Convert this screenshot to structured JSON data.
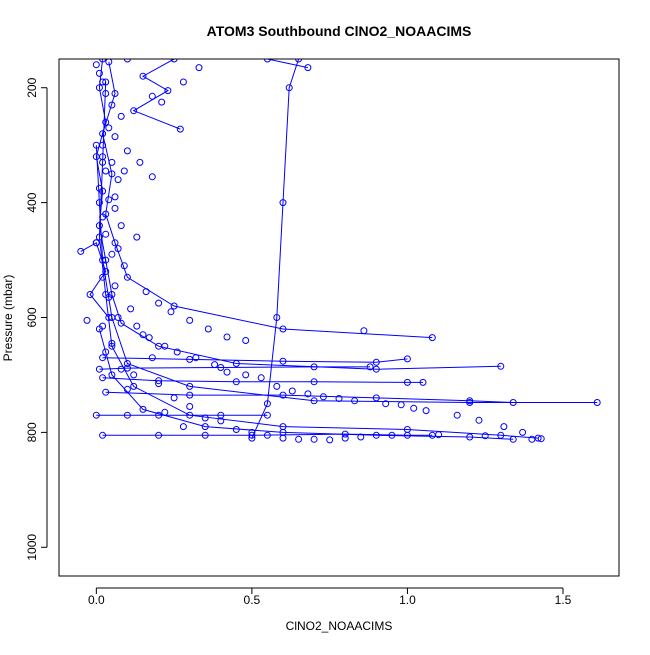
{
  "chart_data": {
    "type": "scatter",
    "title": "ATOM3 Southbound ClNO2_NOAACIMS",
    "xlabel": "ClNO2_NOAACIMS",
    "ylabel": "Pressure (mbar)",
    "xlim": [
      -0.12,
      1.68
    ],
    "ylim": [
      1050,
      150
    ],
    "y_reversed": true,
    "x_ticks": [
      "0.0",
      "0.5",
      "1.0",
      "1.5"
    ],
    "y_ticks": [
      "200",
      "400",
      "600",
      "800",
      "1000"
    ],
    "grid": false,
    "legend": "none",
    "marker": "open-circle",
    "color": "#0000ff",
    "series": [
      {
        "values": [
          [
            0.02,
            150
          ],
          [
            0.01,
            200
          ],
          [
            0.03,
            260
          ],
          [
            0.0,
            320
          ],
          [
            0.02,
            380
          ],
          [
            0.01,
            440
          ],
          [
            0.03,
            500
          ],
          [
            0.05,
            560
          ],
          [
            0.08,
            610
          ],
          [
            0.2,
            650
          ],
          [
            0.45,
            680
          ],
          [
            0.9,
            690
          ],
          [
            1.3,
            685
          ]
        ]
      },
      {
        "values": [
          [
            0.04,
            155
          ],
          [
            0.06,
            210
          ],
          [
            0.02,
            280
          ],
          [
            0.05,
            350
          ],
          [
            0.03,
            420
          ],
          [
            0.06,
            470
          ],
          [
            0.1,
            530
          ],
          [
            0.25,
            580
          ],
          [
            0.6,
            620
          ],
          [
            1.08,
            635
          ]
        ]
      },
      {
        "values": [
          [
            0.0,
            300
          ],
          [
            0.01,
            400
          ],
          [
            0.02,
            500
          ],
          [
            0.05,
            600
          ],
          [
            0.1,
            680
          ],
          [
            0.3,
            720
          ],
          [
            0.7,
            745
          ],
          [
            1.2,
            748
          ],
          [
            1.61,
            748
          ]
        ]
      },
      {
        "values": [
          [
            0.03,
            190
          ],
          [
            0.02,
            330
          ],
          [
            0.01,
            460
          ],
          [
            0.03,
            560
          ],
          [
            0.05,
            650
          ],
          [
            0.12,
            720
          ],
          [
            0.3,
            770
          ],
          [
            0.6,
            790
          ],
          [
            1.0,
            795
          ],
          [
            1.3,
            805
          ],
          [
            1.42,
            810
          ]
        ]
      },
      {
        "values": [
          [
            0.01,
            620
          ],
          [
            0.05,
            700
          ],
          [
            0.15,
            760
          ],
          [
            0.35,
            790
          ],
          [
            0.6,
            800
          ],
          [
            0.9,
            805
          ],
          [
            1.2,
            808
          ],
          [
            1.34,
            812
          ]
        ]
      },
      {
        "values": [
          [
            0.5,
            810
          ],
          [
            0.55,
            750
          ],
          [
            0.58,
            600
          ],
          [
            0.6,
            400
          ],
          [
            0.62,
            200
          ],
          [
            0.65,
            150
          ]
        ]
      },
      {
        "values": [
          [
            0.68,
            165
          ],
          [
            0.55,
            150
          ]
        ]
      },
      {
        "values": [
          [
            0.1,
            150
          ],
          [
            0.25,
            150
          ],
          [
            0.15,
            180
          ],
          [
            0.23,
            205
          ],
          [
            0.12,
            240
          ],
          [
            0.27,
            272
          ]
        ]
      },
      {
        "values": [
          [
            0.02,
            705
          ],
          [
            0.2,
            710
          ],
          [
            0.45,
            712
          ],
          [
            0.7,
            712
          ],
          [
            1.0,
            713
          ],
          [
            1.05,
            713
          ]
        ]
      },
      {
        "values": [
          [
            0.03,
            730
          ],
          [
            0.3,
            735
          ],
          [
            0.6,
            735
          ],
          [
            0.9,
            740
          ],
          [
            1.2,
            745
          ],
          [
            1.34,
            748
          ]
        ]
      },
      {
        "values": [
          [
            0.01,
            690
          ],
          [
            0.1,
            688
          ],
          [
            0.4,
            687
          ],
          [
            0.7,
            686
          ],
          [
            0.88,
            686
          ]
        ]
      },
      {
        "values": [
          [
            0.02,
            805
          ],
          [
            0.2,
            805
          ],
          [
            0.35,
            805
          ],
          [
            0.5,
            805
          ],
          [
            0.8,
            803
          ],
          [
            1.0,
            805
          ],
          [
            1.08,
            805
          ]
        ]
      },
      {
        "values": [
          [
            0.0,
            770
          ],
          [
            0.1,
            770
          ],
          [
            0.2,
            770
          ],
          [
            0.4,
            770
          ],
          [
            0.55,
            770
          ]
        ]
      },
      {
        "values": [
          [
            -0.05,
            485
          ],
          [
            0.0,
            470
          ],
          [
            0.03,
            520
          ],
          [
            -0.02,
            560
          ],
          [
            0.04,
            600
          ]
        ]
      },
      {
        "values": [
          [
            0.02,
            670
          ],
          [
            0.3,
            673
          ],
          [
            0.6,
            676
          ],
          [
            0.9,
            678
          ],
          [
            1.0,
            672
          ]
        ]
      }
    ],
    "scatter_only": [
      [
        0.0,
        160
      ],
      [
        0.01,
        175
      ],
      [
        0.02,
        190
      ],
      [
        0.03,
        210
      ],
      [
        0.05,
        230
      ],
      [
        0.08,
        250
      ],
      [
        0.04,
        270
      ],
      [
        0.06,
        285
      ],
      [
        0.02,
        300
      ],
      [
        0.1,
        310
      ],
      [
        0.05,
        330
      ],
      [
        0.03,
        345
      ],
      [
        0.07,
        360
      ],
      [
        0.01,
        375
      ],
      [
        0.04,
        395
      ],
      [
        0.06,
        410
      ],
      [
        0.02,
        425
      ],
      [
        0.08,
        440
      ],
      [
        0.03,
        455
      ],
      [
        0.0,
        470
      ],
      [
        0.05,
        490
      ],
      [
        0.09,
        510
      ],
      [
        0.02,
        530
      ],
      [
        0.06,
        545
      ],
      [
        0.04,
        565
      ],
      [
        0.11,
        585
      ],
      [
        0.07,
        600
      ],
      [
        0.02,
        615
      ],
      [
        0.15,
        630
      ],
      [
        0.05,
        645
      ],
      [
        0.03,
        660
      ],
      [
        0.18,
        670
      ],
      [
        0.08,
        690
      ],
      [
        0.12,
        700
      ],
      [
        0.2,
        715
      ],
      [
        0.1,
        725
      ],
      [
        0.25,
        740
      ],
      [
        0.3,
        755
      ],
      [
        0.22,
        765
      ],
      [
        0.35,
        775
      ],
      [
        0.4,
        780
      ],
      [
        0.28,
        790
      ],
      [
        0.45,
        795
      ],
      [
        0.5,
        800
      ],
      [
        0.55,
        805
      ],
      [
        0.6,
        810
      ],
      [
        0.65,
        812
      ],
      [
        0.7,
        812
      ],
      [
        0.75,
        813
      ],
      [
        0.8,
        810
      ],
      [
        0.85,
        808
      ],
      [
        0.95,
        805
      ],
      [
        1.1,
        804
      ],
      [
        1.25,
        806
      ],
      [
        1.4,
        812
      ],
      [
        1.43,
        811
      ],
      [
        -0.03,
        605
      ],
      [
        0.13,
        615
      ],
      [
        0.17,
        635
      ],
      [
        0.22,
        650
      ],
      [
        0.26,
        660
      ],
      [
        0.32,
        670
      ],
      [
        0.38,
        682
      ],
      [
        0.42,
        695
      ],
      [
        0.48,
        700
      ],
      [
        0.53,
        705
      ],
      [
        0.58,
        720
      ],
      [
        0.63,
        728
      ],
      [
        0.68,
        733
      ],
      [
        0.73,
        738
      ],
      [
        0.78,
        741
      ],
      [
        0.83,
        745
      ],
      [
        0.93,
        750
      ],
      [
        0.98,
        752
      ],
      [
        1.02,
        758
      ],
      [
        1.06,
        762
      ],
      [
        1.16,
        770
      ],
      [
        1.23,
        779
      ],
      [
        1.31,
        790
      ],
      [
        1.37,
        800
      ],
      [
        0.02,
        320
      ],
      [
        0.14,
        330
      ],
      [
        0.09,
        345
      ],
      [
        0.18,
        355
      ],
      [
        0.06,
        390
      ],
      [
        0.13,
        460
      ],
      [
        0.07,
        480
      ],
      [
        0.16,
        555
      ],
      [
        0.2,
        575
      ],
      [
        0.24,
        590
      ],
      [
        0.3,
        605
      ],
      [
        0.36,
        620
      ],
      [
        0.42,
        634
      ],
      [
        0.48,
        640
      ],
      [
        0.86,
        623
      ],
      [
        0.28,
        190
      ],
      [
        0.33,
        165
      ],
      [
        0.18,
        215
      ],
      [
        0.21,
        225
      ]
    ]
  }
}
